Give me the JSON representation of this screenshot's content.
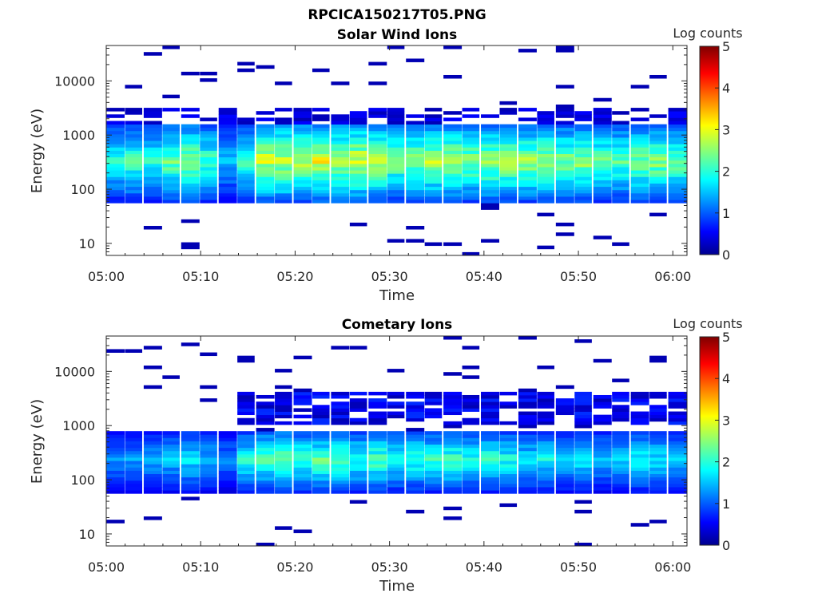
{
  "figure": {
    "title": "RPCICA150217T05.PNG"
  },
  "chart_data": [
    {
      "type": "heatmap",
      "title": "Solar Wind Ions",
      "xlabel": "Time",
      "ylabel": "Energy (eV)",
      "y_scale": "log",
      "ylim": [
        6,
        45000
      ],
      "x_ticks": [
        "05:00",
        "05:10",
        "05:20",
        "05:30",
        "05:40",
        "05:50",
        "06:00"
      ],
      "x_range_minutes": [
        0,
        61.5
      ],
      "y_ticks": [
        "10",
        "100",
        "1000",
        "10000"
      ],
      "colorbar": {
        "label": "Log counts",
        "range": [
          0,
          5
        ],
        "ticks": [
          "0",
          "1",
          "2",
          "3",
          "4",
          "5"
        ],
        "colormap": "jet"
      },
      "main_band_eV": [
        80,
        1400
      ],
      "peak_log_counts_by_interval": [
        2.0,
        2.2,
        2.0,
        2.4,
        2.6,
        2.2,
        1.6,
        2.2,
        2.9,
        2.9,
        2.8,
        3.0,
        2.9,
        3.0,
        2.8,
        2.5,
        2.6,
        2.7,
        2.7,
        2.6,
        2.7,
        2.7,
        2.6,
        2.7,
        2.5,
        2.6,
        2.4,
        2.3,
        2.5,
        2.6,
        2.4
      ]
    },
    {
      "type": "heatmap",
      "title": "Cometary Ions",
      "xlabel": "Time",
      "ylabel": "Energy (eV)",
      "y_scale": "log",
      "ylim": [
        6,
        45000
      ],
      "x_ticks": [
        "05:00",
        "05:10",
        "05:20",
        "05:30",
        "05:40",
        "05:50",
        "06:00"
      ],
      "x_range_minutes": [
        0,
        61.5
      ],
      "y_ticks": [
        "10",
        "100",
        "1000",
        "10000"
      ],
      "colorbar": {
        "label": "Log counts",
        "range": [
          0,
          5
        ],
        "ticks": [
          "0",
          "1",
          "2",
          "3",
          "4",
          "5"
        ],
        "colormap": "jet"
      },
      "main_band_eV": [
        80,
        700
      ],
      "high_band_eV": [
        1000,
        4000
      ],
      "peak_log_counts_by_interval": [
        1.4,
        1.4,
        1.5,
        1.6,
        1.8,
        1.6,
        1.3,
        2.0,
        2.3,
        2.4,
        2.2,
        2.3,
        2.3,
        2.1,
        2.3,
        2.0,
        2.1,
        2.1,
        2.2,
        2.0,
        2.1,
        2.0,
        1.8,
        1.9,
        1.7,
        1.8,
        1.6,
        1.8,
        1.9,
        1.8,
        1.7
      ]
    }
  ]
}
